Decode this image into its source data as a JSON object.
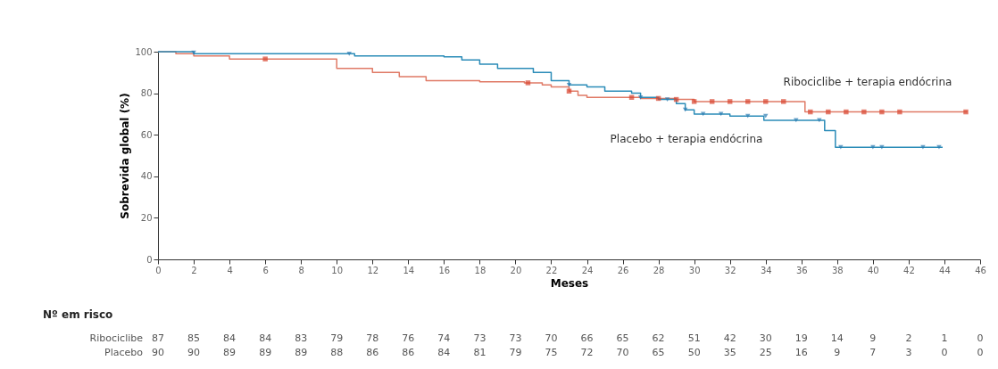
{
  "chart_data": {
    "type": "step",
    "xlabel": "Meses",
    "ylabel": "Sobrevida global (%)",
    "xlim": [
      0,
      46
    ],
    "xticks": [
      0,
      2,
      4,
      6,
      8,
      10,
      12,
      14,
      16,
      18,
      20,
      22,
      24,
      26,
      28,
      30,
      32,
      34,
      36,
      38,
      40,
      42,
      44,
      46
    ],
    "ylim": [
      0,
      100
    ],
    "yticks": [
      0,
      20,
      40,
      60,
      80,
      100
    ],
    "grid": false,
    "line_style": "solid",
    "series": [
      {
        "color": "#e07a66",
        "marker": "none",
        "x": [
          0,
          1,
          2,
          4,
          9,
          10,
          12,
          13.5,
          15,
          18,
          20.5,
          21.5,
          22,
          23,
          23.5,
          24,
          27,
          29,
          30,
          36.2,
          45.3
        ],
        "values": [
          100,
          99,
          98,
          96.5,
          96.5,
          92,
          90,
          88,
          86,
          85.5,
          85,
          84,
          83,
          81,
          79,
          78,
          77.5,
          77,
          76,
          71,
          71
        ]
      },
      {
        "color": "#2b8cb8",
        "marker": "none",
        "x": [
          0,
          2,
          11,
          16,
          17,
          18,
          19,
          21,
          22,
          23,
          24,
          25,
          26.5,
          27,
          28,
          29,
          29.5,
          30,
          32,
          33.9,
          37.3,
          37.9,
          43.9
        ],
        "values": [
          100,
          99,
          98,
          97.5,
          96,
          94,
          92,
          90,
          86,
          84,
          83,
          81,
          80,
          78,
          77,
          75,
          72,
          70,
          69,
          67,
          62,
          54,
          54
        ]
      },
      {
        "type": "scatter",
        "color": "#d9452f",
        "marker": "square",
        "x": [
          6,
          20.7,
          23,
          26.5,
          28,
          29,
          30,
          31,
          32,
          33,
          34,
          35,
          36.5,
          37.5,
          38.5,
          39.5,
          40.5,
          41.5,
          45.2
        ],
        "values": [
          96.5,
          85,
          81,
          78,
          77.5,
          77,
          76,
          76,
          76,
          76,
          76,
          76,
          71,
          71,
          71,
          71,
          71,
          71,
          71
        ]
      },
      {
        "type": "scatter",
        "color": "#2b7bb0",
        "marker": "triangle",
        "x": [
          2,
          10.7,
          23,
          27,
          28.5,
          29.5,
          30.5,
          31.5,
          33,
          34,
          35.7,
          37,
          38.2,
          40,
          40.5,
          42.8,
          43.7
        ],
        "values": [
          99.5,
          99,
          84,
          78,
          77,
          72,
          70,
          70,
          69,
          69,
          67,
          67,
          54,
          54,
          54,
          54,
          54
        ]
      }
    ],
    "annotations": [
      "Ribociclibe + terapia endócrina",
      "Placebo + terapia endócrina",
      "Nº em risco",
      "Ribociclibe",
      "87 85 84 84 83 79 78 76 74 73 73 70 66 65 62 51 42 30 19 14 9 2 1 0",
      "Placebo",
      "90 90 89 89 89 88 86 86 84 81 79 75 72 70 65 50 35 25 16 9 7 3 0 0"
    ]
  }
}
